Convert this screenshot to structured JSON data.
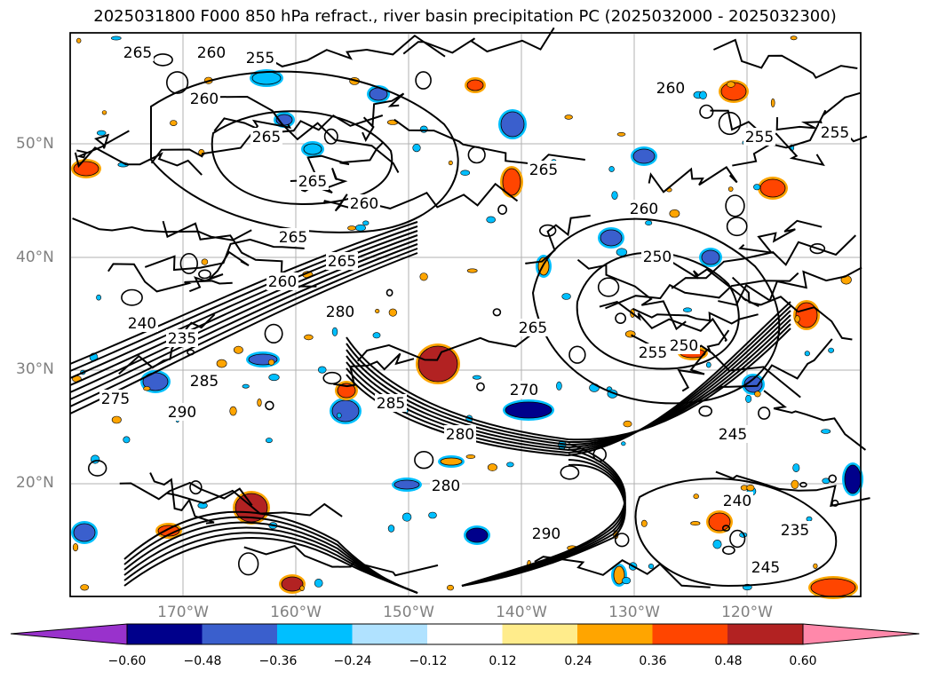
{
  "title": "2025031800 F000 850 hPa refract., river basin precipitation PC (2025032000 - 2025032300)",
  "lat_labels": [
    "50°N",
    "40°N",
    "30°N",
    "20°N"
  ],
  "lon_labels": [
    "170°W",
    "160°W",
    "150°W",
    "140°W",
    "130°W",
    "120°W"
  ],
  "contour_labels": [
    "265",
    "260",
    "255",
    "265",
    "265",
    "260",
    "265",
    "255",
    "265",
    "250",
    "260",
    "240",
    "235",
    "280",
    "265",
    "260",
    "260",
    "250",
    "255",
    "245",
    "240",
    "235",
    "245",
    "285",
    "290",
    "275",
    "280",
    "270",
    "285",
    "290",
    "280",
    "265",
    "260",
    "255"
  ],
  "colorbar": {
    "ticks": [
      "−0.60",
      "−0.48",
      "−0.36",
      "−0.24",
      "−0.12",
      "0.12",
      "0.24",
      "0.36",
      "0.48",
      "0.60"
    ],
    "colors": [
      "#9932cc",
      "#00008b",
      "#3a5fcd",
      "#00bfff",
      "#b0e2ff",
      "#ffffff",
      "#ffec8b",
      "#ffa500",
      "#ff4500",
      "#b22222",
      "#ff88aa"
    ]
  },
  "map_features": {
    "projection": "lat-lon",
    "gridlines": true,
    "coastlines": true,
    "contour_field": "850 hPa refractivity",
    "shaded_field": "river basin precipitation PC"
  }
}
